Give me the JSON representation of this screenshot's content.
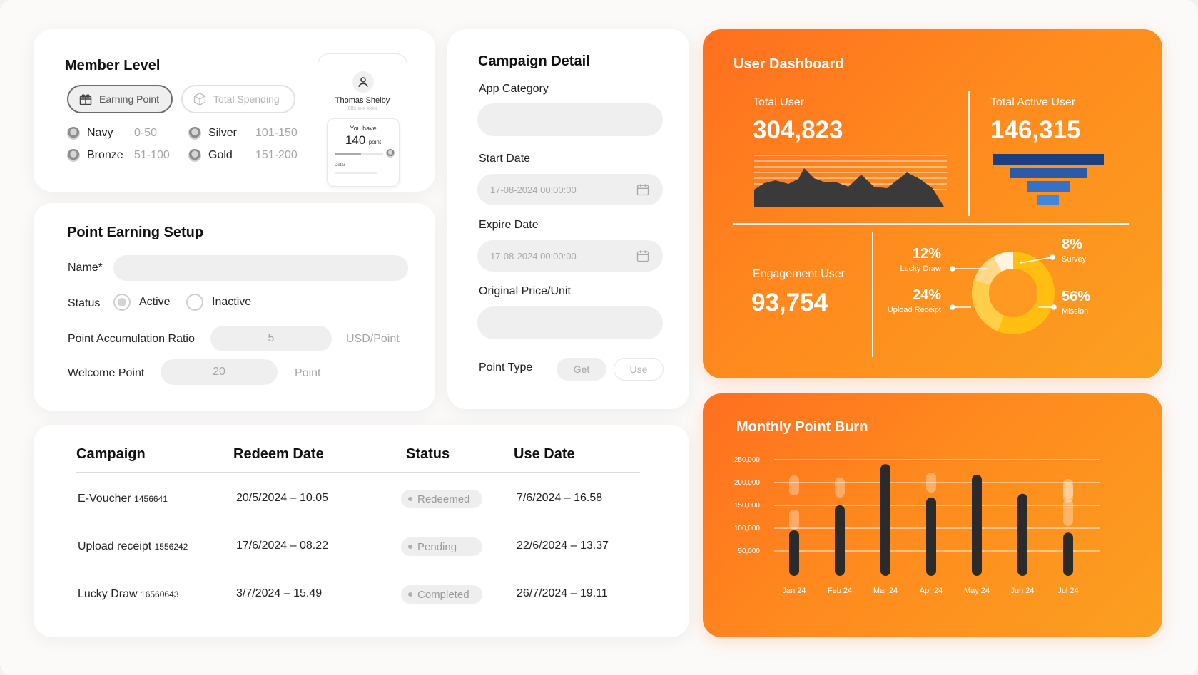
{
  "member_level": {
    "title": "Member Level",
    "tab_earning": "Earning Point",
    "tab_spending": "Total Spending",
    "levels": [
      {
        "name": "Navy",
        "range": "0-50"
      },
      {
        "name": "Bronze",
        "range": "51-100"
      },
      {
        "name": "Silver",
        "range": "101-150"
      },
      {
        "name": "Gold",
        "range": "151-200"
      }
    ],
    "preview": {
      "user_name": "Thomas Shelby",
      "phone": "08x-xxx-xxxx",
      "you_have": "You have",
      "points": "140",
      "point_unit": "point",
      "detail": "Detail"
    }
  },
  "point_setup": {
    "title": "Point Earning Setup",
    "name_label": "Name*",
    "status_label": "Status",
    "status_active": "Active",
    "status_inactive": "Inactive",
    "ratio_label": "Point Accumulation Ratio",
    "ratio_value": "5",
    "ratio_unit": "USD/Point",
    "welcome_label": "Welcome Point",
    "welcome_value": "20",
    "welcome_unit": "Point"
  },
  "campaign": {
    "title": "Campaign Detail",
    "app_category": "App Category",
    "start_date": "Start Date",
    "start_value": "17-08-2024 00:00:00",
    "expire_date": "Expire Date",
    "expire_value": "17-08-2024 00:00:00",
    "price_label": "Original Price/Unit",
    "point_type": "Point Type",
    "get": "Get",
    "use": "Use"
  },
  "table": {
    "headers": [
      "Campaign",
      "Redeem Date",
      "Status",
      "Use Date"
    ],
    "rows": [
      {
        "name": "E-Voucher",
        "code": "1456641",
        "redeem": "20/5/2024 – 10.05",
        "status": "Redeemed",
        "use": "7/6/2024 – 16.58"
      },
      {
        "name": "Upload receipt",
        "code": "1556242",
        "redeem": "17/6/2024 – 08.22",
        "status": "Pending",
        "use": "22/6/2024 – 13.37"
      },
      {
        "name": "Lucky Draw",
        "code": "16560643",
        "redeem": "3/7/2024 – 15.49",
        "status": "Completed",
        "use": "26/7/2024 – 19.11"
      }
    ]
  },
  "dashboard": {
    "title": "User Dashboard",
    "total_user_label": "Total User",
    "total_user": "304,823",
    "active_user_label": "Total Active User",
    "active_user": "146,315",
    "engagement_label": "Engagement User",
    "engagement": "93,754",
    "donut": [
      {
        "pct": "12%",
        "label": "Lucky Draw",
        "value": 12,
        "color": "#ffd88a"
      },
      {
        "pct": "8%",
        "label": "Survey",
        "value": 8,
        "color": "#fff4e0"
      },
      {
        "pct": "56%",
        "label": "Mission",
        "value": 56,
        "color": "#ffbe10"
      },
      {
        "pct": "24%",
        "label": "Upload Receipt",
        "value": 24,
        "color": "#ffcf4a"
      }
    ],
    "colors": {
      "funnel": [
        "#1e3f7e",
        "#2c5aa8",
        "#3472c8",
        "#3f86dc"
      ],
      "area": "#3a3a3a"
    }
  },
  "chart_data": {
    "type": "bar",
    "title": "Monthly Point Burn",
    "categories": [
      "Jan 24",
      "Feb 24",
      "Mar 24",
      "Apr 24",
      "May 24",
      "Jun 24",
      "Jul 24"
    ],
    "series": [
      {
        "values": [
          100000,
          155000,
          245000,
          172000,
          222000,
          180000,
          95000
        ]
      }
    ],
    "y_ticks": [
      {
        "v": 250000,
        "label": "250,000"
      },
      {
        "v": 200000,
        "label": "200,000"
      },
      {
        "v": 150000,
        "label": "150,000"
      },
      {
        "v": 100000,
        "label": "100,000"
      },
      {
        "v": 50000,
        "label": "50,000"
      }
    ],
    "ylim": [
      0,
      250000
    ],
    "grid": true
  }
}
